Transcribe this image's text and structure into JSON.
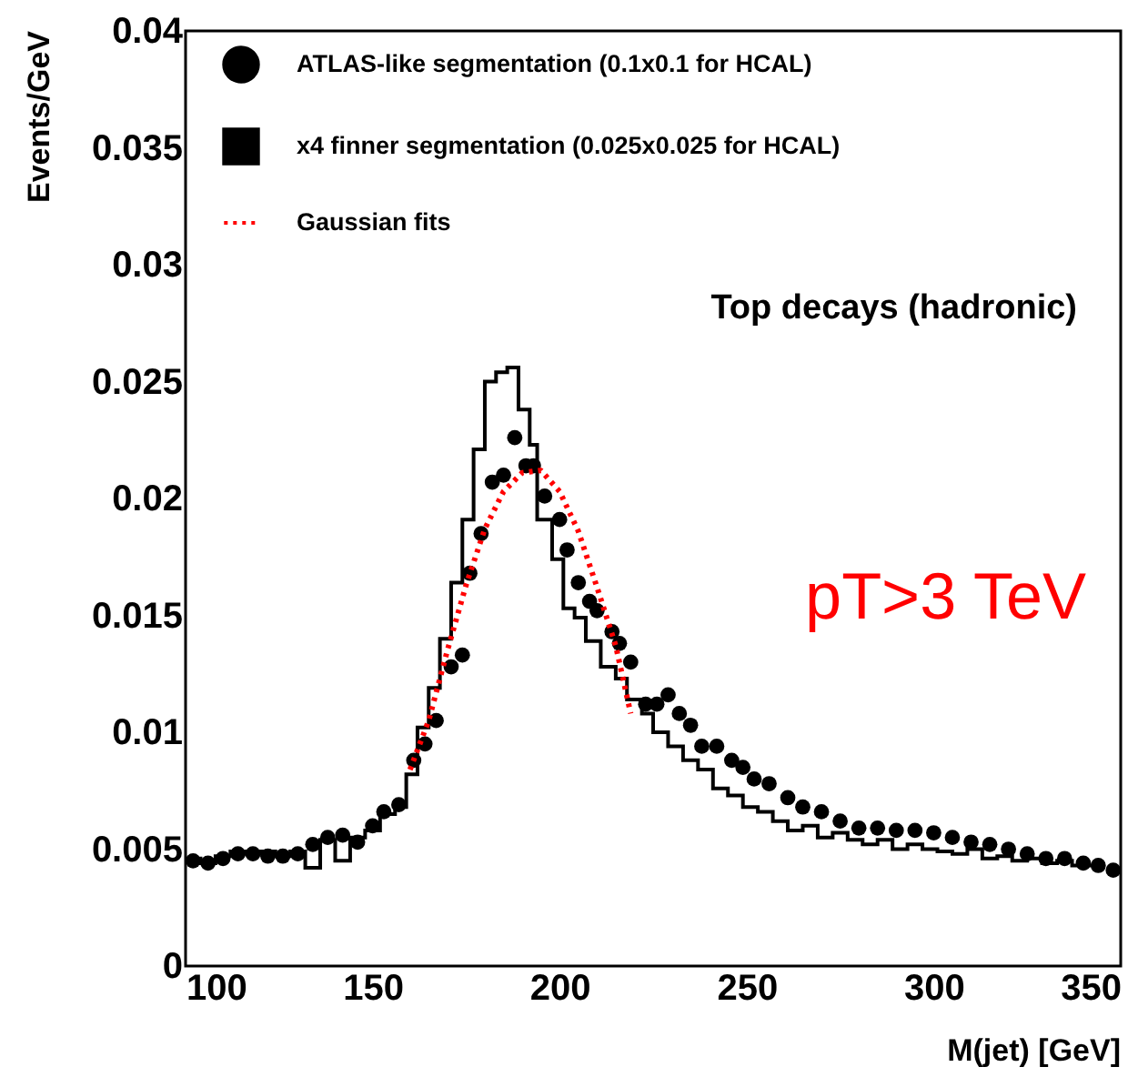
{
  "chart_data": {
    "type": "scatter",
    "xlabel": "M(jet) [GeV]",
    "ylabel": "Events/GeV",
    "xlim": [
      100,
      350
    ],
    "xticks": [
      100,
      150,
      200,
      250,
      300,
      350
    ],
    "ylim": [
      0,
      0.04
    ],
    "yticks": [
      0,
      0.005,
      0.01,
      0.015,
      0.02,
      0.025,
      0.03,
      0.035,
      0.04
    ],
    "grid": false,
    "legend": "top left",
    "annotations": [
      "Top decays (hadronic)",
      "pT>3 TeV"
    ],
    "series": [
      {
        "name": "ATLAS-like segmentation (0.1x0.1 for HCAL)",
        "marker": "circle",
        "color": "#000000",
        "x": [
          102,
          106,
          110,
          114,
          118,
          122,
          126,
          130,
          134,
          138,
          142,
          146,
          150,
          153,
          157,
          161,
          164,
          167,
          171,
          174,
          176,
          179,
          182,
          185,
          188,
          191,
          193,
          196,
          200,
          202,
          205,
          208,
          210,
          214,
          216,
          219,
          223,
          226,
          229,
          232,
          235,
          238,
          242,
          246,
          249,
          252,
          256,
          261,
          265,
          270,
          275,
          280,
          285,
          290,
          295,
          300,
          305,
          310,
          315,
          320,
          325,
          330,
          335,
          340,
          344,
          348
        ],
        "values": [
          0.0045,
          0.0044,
          0.0046,
          0.0048,
          0.0048,
          0.0047,
          0.0047,
          0.0048,
          0.0052,
          0.0055,
          0.0056,
          0.0053,
          0.006,
          0.0066,
          0.0069,
          0.0088,
          0.0095,
          0.0105,
          0.0128,
          0.0133,
          0.0168,
          0.0185,
          0.0207,
          0.021,
          0.0226,
          0.0214,
          0.0214,
          0.0201,
          0.0191,
          0.0178,
          0.0164,
          0.0156,
          0.0152,
          0.0143,
          0.0138,
          0.013,
          0.0112,
          0.0112,
          0.0116,
          0.0108,
          0.0103,
          0.0094,
          0.0094,
          0.0088,
          0.0085,
          0.008,
          0.0078,
          0.0072,
          0.0068,
          0.0066,
          0.0062,
          0.0059,
          0.0059,
          0.0058,
          0.0058,
          0.0057,
          0.0055,
          0.0053,
          0.0052,
          0.005,
          0.0048,
          0.0046,
          0.0046,
          0.0044,
          0.0043,
          0.0041
        ]
      },
      {
        "name": "x4 finner segmentation (0.025x0.025 for HCAL)",
        "type": "step",
        "color": "#000000",
        "x": [
          100,
          104,
          108,
          112,
          116,
          120,
          124,
          128,
          132,
          136,
          140,
          144,
          148,
          152,
          156,
          159,
          162,
          165,
          168,
          171,
          174,
          177,
          180,
          183,
          186,
          189,
          192,
          194,
          198,
          201,
          204,
          207,
          211,
          215,
          218,
          222,
          225,
          229,
          233,
          237,
          241,
          245,
          249,
          253,
          257,
          261,
          265,
          269,
          273,
          277,
          281,
          285,
          289,
          293,
          297,
          301,
          305,
          309,
          313,
          317,
          321,
          325,
          329,
          333,
          337,
          341,
          345
        ],
        "values": [
          0.0046,
          0.0044,
          0.0047,
          0.0049,
          0.0048,
          0.0049,
          0.0047,
          0.0049,
          0.0042,
          0.0054,
          0.0045,
          0.0055,
          0.0058,
          0.0065,
          0.0068,
          0.0082,
          0.0102,
          0.0119,
          0.014,
          0.0164,
          0.0191,
          0.0221,
          0.025,
          0.0254,
          0.0256,
          0.0238,
          0.0223,
          0.0191,
          0.0174,
          0.0153,
          0.0149,
          0.0139,
          0.0128,
          0.0123,
          0.0114,
          0.0108,
          0.01,
          0.0094,
          0.0088,
          0.0084,
          0.0076,
          0.0073,
          0.0068,
          0.0066,
          0.0062,
          0.0058,
          0.006,
          0.0055,
          0.0057,
          0.0054,
          0.0052,
          0.0054,
          0.005,
          0.0052,
          0.005,
          0.0049,
          0.0048,
          0.005,
          0.0046,
          0.0047,
          0.0045,
          0.0046,
          0.0044,
          0.0045,
          0.0043,
          0.0043,
          0.0042
        ]
      },
      {
        "name": "Gaussian fits",
        "type": "line",
        "line_style": "dotted",
        "color": "#ff0000",
        "x": [
          160,
          165,
          170,
          175,
          180,
          185,
          190,
          195,
          200,
          205,
          210,
          215,
          219
        ],
        "values": [
          0.0084,
          0.0105,
          0.0135,
          0.0163,
          0.0187,
          0.0203,
          0.0211,
          0.0212,
          0.0203,
          0.0186,
          0.0162,
          0.0137,
          0.0108
        ]
      }
    ]
  }
}
